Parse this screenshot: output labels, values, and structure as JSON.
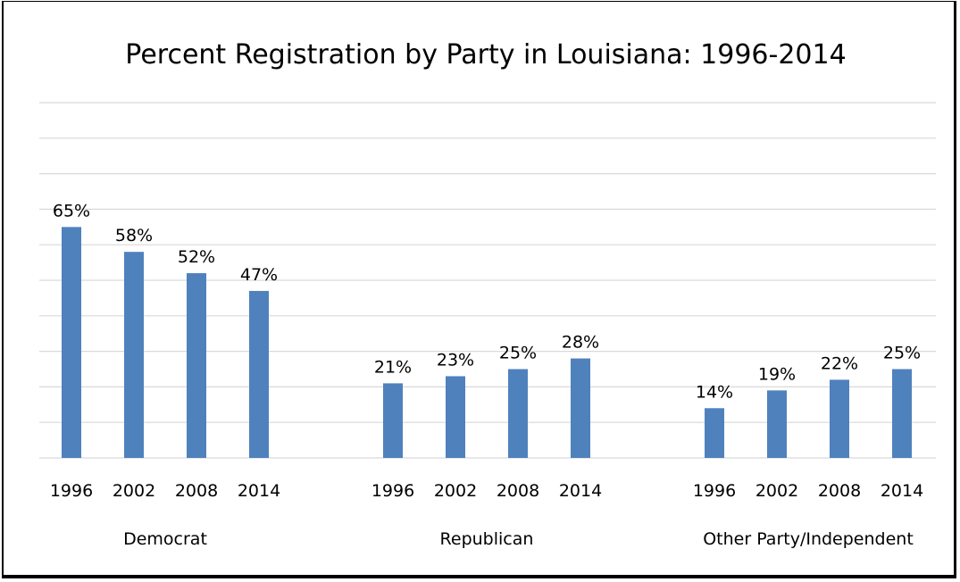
{
  "chart_data": {
    "type": "bar",
    "title": "Percent Registration by Party in Louisiana: 1996-2014",
    "groups": [
      {
        "name": "Democrat",
        "categories": [
          "1996",
          "2002",
          "2008",
          "2014"
        ],
        "values": [
          65,
          58,
          52,
          47
        ],
        "labels": [
          "65%",
          "58%",
          "52%",
          "47%"
        ]
      },
      {
        "name": "Republican",
        "categories": [
          "1996",
          "2002",
          "2008",
          "2014"
        ],
        "values": [
          21,
          23,
          25,
          28
        ],
        "labels": [
          "21%",
          "23%",
          "25%",
          "28%"
        ]
      },
      {
        "name": "Other Party/Independent",
        "categories": [
          "1996",
          "2002",
          "2008",
          "2014"
        ],
        "values": [
          14,
          19,
          22,
          25
        ],
        "labels": [
          "14%",
          "19%",
          "22%",
          "25%"
        ]
      }
    ],
    "ylim": [
      0,
      100
    ],
    "grid": true,
    "legend": "none",
    "colors": {
      "bar": "#4f81bd",
      "grid": "#d9d9d9"
    }
  }
}
